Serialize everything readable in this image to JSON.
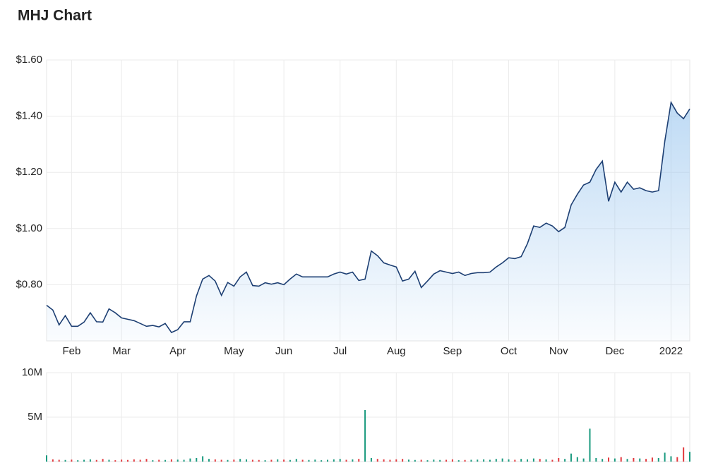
{
  "chart_data": [
    {
      "type": "line",
      "title": "MHJ Chart",
      "color": "#1d3f73",
      "fill": "#9cc7ef",
      "grid": true,
      "categories": [
        null,
        null,
        null,
        null,
        "Feb",
        null,
        null,
        null,
        null,
        null,
        null,
        null,
        "Mar",
        null,
        null,
        null,
        null,
        null,
        null,
        null,
        null,
        "Apr",
        null,
        null,
        null,
        null,
        null,
        null,
        null,
        null,
        "May",
        null,
        null,
        null,
        null,
        null,
        null,
        null,
        "Jun",
        null,
        null,
        null,
        null,
        null,
        null,
        null,
        null,
        "Jul",
        null,
        null,
        null,
        null,
        null,
        null,
        null,
        null,
        "Aug",
        null,
        null,
        null,
        null,
        null,
        null,
        null,
        null,
        "Sep",
        null,
        null,
        null,
        null,
        null,
        null,
        null,
        null,
        "Oct",
        null,
        null,
        null,
        null,
        null,
        null,
        null,
        "Nov",
        null,
        null,
        null,
        null,
        null,
        null,
        null,
        null,
        "Dec",
        null,
        null,
        null,
        null,
        null,
        null,
        null,
        null,
        "2022",
        null,
        null,
        null
      ],
      "values": [
        0.727,
        0.71,
        0.657,
        0.69,
        0.652,
        0.652,
        0.667,
        0.7,
        0.668,
        0.667,
        0.714,
        0.7,
        0.682,
        0.677,
        0.672,
        0.662,
        0.652,
        0.655,
        0.65,
        0.662,
        0.63,
        0.64,
        0.668,
        0.668,
        0.76,
        0.82,
        0.833,
        0.813,
        0.762,
        0.808,
        0.795,
        0.828,
        0.845,
        0.797,
        0.795,
        0.807,
        0.802,
        0.807,
        0.8,
        0.82,
        0.838,
        0.828,
        0.828,
        0.828,
        0.828,
        0.828,
        0.838,
        0.845,
        0.838,
        0.845,
        0.815,
        0.82,
        0.92,
        0.903,
        0.878,
        0.87,
        0.863,
        0.813,
        0.82,
        0.848,
        0.79,
        0.813,
        0.838,
        0.85,
        0.845,
        0.84,
        0.845,
        0.833,
        0.84,
        0.843,
        0.843,
        0.845,
        0.863,
        0.878,
        0.896,
        0.893,
        0.9,
        0.946,
        1.009,
        1.004,
        1.019,
        1.009,
        0.989,
        1.004,
        1.084,
        1.122,
        1.155,
        1.165,
        1.21,
        1.24,
        1.097,
        1.165,
        1.13,
        1.165,
        1.14,
        1.145,
        1.135,
        1.13,
        1.135,
        1.31,
        1.449,
        1.411,
        1.391,
        1.426
      ],
      "ylim": [
        0.6,
        1.6
      ],
      "yticks": [
        {
          "value": 0.8,
          "label": "$0.80"
        },
        {
          "value": 1.0,
          "label": "$1.00"
        },
        {
          "value": 1.2,
          "label": "$1.20"
        },
        {
          "value": 1.4,
          "label": "$1.40"
        },
        {
          "value": 1.6,
          "label": "$1.60"
        }
      ]
    },
    {
      "type": "bar",
      "up_color": "#1a9a7f",
      "down_color": "#e2383d",
      "grid": true,
      "values": [
        700000,
        250000,
        200000,
        180000,
        220000,
        150000,
        200000,
        250000,
        180000,
        300000,
        200000,
        150000,
        220000,
        180000,
        250000,
        200000,
        300000,
        150000,
        200000,
        180000,
        250000,
        220000,
        200000,
        350000,
        400000,
        600000,
        300000,
        250000,
        200000,
        180000,
        220000,
        300000,
        250000,
        200000,
        180000,
        150000,
        200000,
        250000,
        220000,
        180000,
        300000,
        200000,
        180000,
        220000,
        150000,
        200000,
        250000,
        300000,
        200000,
        250000,
        300000,
        5800000,
        400000,
        300000,
        250000,
        200000,
        250000,
        300000,
        220000,
        180000,
        200000,
        150000,
        220000,
        180000,
        200000,
        250000,
        150000,
        180000,
        200000,
        220000,
        250000,
        200000,
        300000,
        350000,
        250000,
        200000,
        300000,
        250000,
        350000,
        300000,
        250000,
        200000,
        400000,
        300000,
        900000,
        500000,
        350000,
        3700000,
        400000,
        300000,
        450000,
        350000,
        500000,
        300000,
        400000,
        350000,
        300000,
        450000,
        400000,
        1000000,
        600000,
        500000,
        1600000,
        1100000
      ],
      "ylim": [
        0,
        10000000
      ],
      "yticks": [
        {
          "value": 5000000,
          "label": "5M"
        },
        {
          "value": 10000000,
          "label": "10M"
        }
      ]
    }
  ]
}
